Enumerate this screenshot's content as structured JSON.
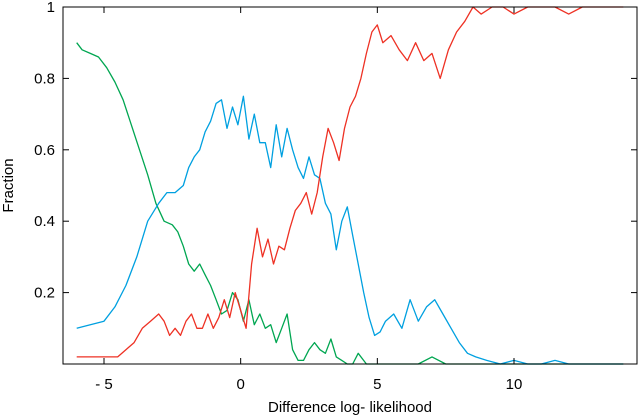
{
  "chart_data": {
    "type": "line",
    "title": "",
    "xlabel": "Difference log- likelihood",
    "ylabel": "Fraction",
    "xlim": [
      -6.5,
      14.5
    ],
    "ylim": [
      0,
      1
    ],
    "grid": false,
    "legend": "none",
    "xticks": [
      {
        "value": -5,
        "label": "- 5"
      },
      {
        "value": 0,
        "label": "0"
      },
      {
        "value": 5,
        "label": "5"
      },
      {
        "value": 10,
        "label": "10"
      }
    ],
    "yticks": [
      {
        "value": 0.2,
        "label": "0.2"
      },
      {
        "value": 0.4,
        "label": "0.4"
      },
      {
        "value": 0.6,
        "label": "0.6"
      },
      {
        "value": 0.8,
        "label": "0.8"
      },
      {
        "value": 1,
        "label": "1"
      }
    ],
    "series": [
      {
        "color": "#00a651",
        "x": [
          -6.0,
          -5.8,
          -5.5,
          -5.2,
          -4.9,
          -4.6,
          -4.3,
          -4.0,
          -3.7,
          -3.4,
          -3.1,
          -2.8,
          -2.5,
          -2.3,
          -2.1,
          -1.9,
          -1.7,
          -1.5,
          -1.3,
          -1.1,
          -0.9,
          -0.7,
          -0.5,
          -0.3,
          -0.1,
          0.1,
          0.3,
          0.5,
          0.7,
          0.9,
          1.1,
          1.3,
          1.5,
          1.7,
          1.9,
          2.1,
          2.3,
          2.5,
          2.7,
          2.9,
          3.1,
          3.3,
          3.5,
          3.7,
          3.9,
          4.1,
          4.3,
          4.6,
          5.0,
          5.5,
          6.0,
          6.5,
          7.0,
          7.5,
          8.0,
          9.0,
          10.0,
          11.0,
          12.0,
          13.0,
          14.0
        ],
        "y": [
          0.9,
          0.88,
          0.87,
          0.86,
          0.83,
          0.79,
          0.74,
          0.67,
          0.6,
          0.53,
          0.45,
          0.4,
          0.39,
          0.37,
          0.33,
          0.28,
          0.26,
          0.28,
          0.25,
          0.22,
          0.18,
          0.14,
          0.15,
          0.2,
          0.18,
          0.12,
          0.18,
          0.11,
          0.14,
          0.1,
          0.11,
          0.06,
          0.1,
          0.14,
          0.04,
          0.01,
          0.01,
          0.04,
          0.06,
          0.04,
          0.03,
          0.07,
          0.02,
          0.01,
          0.0,
          0.0,
          0.03,
          0.0,
          0.0,
          0.0,
          0.0,
          0.0,
          0.02,
          0.0,
          0.0,
          0.0,
          0.0,
          0.0,
          0.0,
          0.0,
          0.0
        ]
      },
      {
        "color": "#00a0e0",
        "x": [
          -6.0,
          -5.5,
          -5.0,
          -4.6,
          -4.2,
          -3.8,
          -3.4,
          -3.0,
          -2.7,
          -2.4,
          -2.1,
          -1.9,
          -1.7,
          -1.5,
          -1.3,
          -1.1,
          -0.9,
          -0.7,
          -0.5,
          -0.3,
          -0.1,
          0.1,
          0.3,
          0.5,
          0.7,
          0.9,
          1.1,
          1.3,
          1.5,
          1.7,
          1.9,
          2.1,
          2.3,
          2.5,
          2.7,
          2.9,
          3.1,
          3.3,
          3.5,
          3.7,
          3.9,
          4.1,
          4.3,
          4.5,
          4.7,
          4.9,
          5.1,
          5.3,
          5.6,
          5.9,
          6.2,
          6.5,
          6.8,
          7.1,
          7.4,
          7.7,
          8.0,
          8.3,
          8.6,
          9.0,
          9.5,
          10.0,
          10.5,
          11.0,
          11.5,
          12.0,
          12.5,
          13.0,
          13.5,
          14.0
        ],
        "y": [
          0.1,
          0.11,
          0.12,
          0.16,
          0.22,
          0.3,
          0.4,
          0.45,
          0.48,
          0.48,
          0.5,
          0.55,
          0.58,
          0.6,
          0.65,
          0.68,
          0.73,
          0.74,
          0.66,
          0.72,
          0.67,
          0.75,
          0.63,
          0.7,
          0.62,
          0.62,
          0.55,
          0.67,
          0.58,
          0.66,
          0.6,
          0.55,
          0.52,
          0.58,
          0.53,
          0.52,
          0.45,
          0.42,
          0.32,
          0.4,
          0.44,
          0.36,
          0.28,
          0.2,
          0.13,
          0.08,
          0.09,
          0.12,
          0.14,
          0.1,
          0.18,
          0.12,
          0.16,
          0.18,
          0.14,
          0.1,
          0.06,
          0.03,
          0.02,
          0.01,
          0.0,
          0.01,
          0.0,
          0.0,
          0.01,
          0.0,
          0.0,
          0.0,
          0.0,
          0.0
        ]
      },
      {
        "color": "#ee3124",
        "x": [
          -6.0,
          -5.5,
          -5.0,
          -4.5,
          -4.2,
          -3.9,
          -3.6,
          -3.3,
          -3.0,
          -2.8,
          -2.6,
          -2.4,
          -2.2,
          -2.0,
          -1.8,
          -1.6,
          -1.4,
          -1.2,
          -1.0,
          -0.8,
          -0.6,
          -0.4,
          -0.2,
          0.0,
          0.2,
          0.4,
          0.6,
          0.8,
          1.0,
          1.2,
          1.4,
          1.6,
          1.8,
          2.0,
          2.2,
          2.4,
          2.6,
          2.8,
          3.0,
          3.2,
          3.4,
          3.6,
          3.8,
          4.0,
          4.2,
          4.4,
          4.6,
          4.8,
          5.0,
          5.2,
          5.5,
          5.8,
          6.1,
          6.4,
          6.7,
          7.0,
          7.3,
          7.6,
          7.9,
          8.2,
          8.5,
          8.8,
          9.2,
          9.6,
          10.0,
          10.5,
          11.0,
          11.5,
          12.0,
          12.5,
          13.0,
          13.5,
          14.0
        ],
        "y": [
          0.02,
          0.02,
          0.02,
          0.02,
          0.04,
          0.06,
          0.1,
          0.12,
          0.14,
          0.12,
          0.08,
          0.1,
          0.08,
          0.12,
          0.14,
          0.1,
          0.1,
          0.14,
          0.1,
          0.13,
          0.18,
          0.13,
          0.2,
          0.15,
          0.1,
          0.28,
          0.38,
          0.3,
          0.35,
          0.28,
          0.33,
          0.32,
          0.38,
          0.43,
          0.45,
          0.48,
          0.42,
          0.48,
          0.58,
          0.66,
          0.62,
          0.57,
          0.66,
          0.72,
          0.75,
          0.8,
          0.87,
          0.93,
          0.95,
          0.9,
          0.92,
          0.88,
          0.85,
          0.9,
          0.85,
          0.87,
          0.8,
          0.88,
          0.93,
          0.96,
          1.0,
          0.98,
          1.0,
          1.0,
          0.98,
          1.0,
          1.0,
          1.0,
          0.98,
          1.0,
          1.0,
          1.0,
          1.0
        ]
      }
    ]
  }
}
